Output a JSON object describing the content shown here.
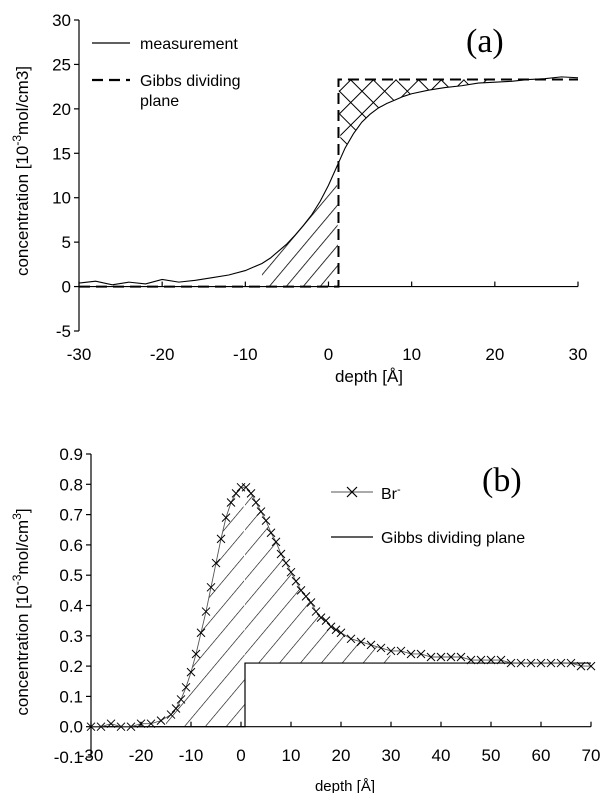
{
  "chart_data": [
    {
      "type": "line",
      "panel_label": "(a)",
      "xlabel": "depth [Å]",
      "ylabel_parts": {
        "pre": "concentration [10",
        "sup": "-3",
        "post": "mol/cm3]"
      },
      "xlim": [
        -30,
        30
      ],
      "ylim": [
        -5,
        30
      ],
      "x_ticks": [
        "-30",
        "-20",
        "-10",
        "0",
        "10",
        "20",
        "30"
      ],
      "y_ticks": [
        "-5",
        "0",
        "5",
        "10",
        "15",
        "20",
        "25",
        "30"
      ],
      "legend": {
        "measurement": "measurement",
        "gibbs_line1": "Gibbs dividing",
        "gibbs_line2": "plane"
      },
      "series": [
        {
          "name": "measurement",
          "style": "solid",
          "x": [
            -30,
            -28,
            -26,
            -24,
            -22,
            -20,
            -18,
            -16,
            -14,
            -12,
            -10,
            -9,
            -8,
            -7,
            -6,
            -5,
            -4,
            -3,
            -2,
            -1,
            0,
            1,
            2,
            3,
            4,
            5,
            6,
            7,
            8,
            9,
            10,
            12,
            14,
            16,
            18,
            20,
            22,
            24,
            26,
            28,
            30
          ],
          "y": [
            0.4,
            0.6,
            0.2,
            0.5,
            0.3,
            0.8,
            0.5,
            0.7,
            1.0,
            1.3,
            1.8,
            2.2,
            2.6,
            3.2,
            4.0,
            4.8,
            5.8,
            6.9,
            8.1,
            9.6,
            11.4,
            13.5,
            15.6,
            17.2,
            18.5,
            19.4,
            20.1,
            20.6,
            21.0,
            21.4,
            21.7,
            22.1,
            22.4,
            22.6,
            22.9,
            23.0,
            23.1,
            23.3,
            23.4,
            23.6,
            23.5
          ]
        },
        {
          "name": "Gibbs dividing plane",
          "style": "dashed",
          "x": [
            -30,
            1.2,
            1.2,
            30
          ],
          "y": [
            0,
            0,
            23.3,
            23.3
          ]
        }
      ]
    },
    {
      "type": "line",
      "panel_label": "(b)",
      "xlabel": "depth [Å]",
      "ylabel_parts": {
        "pre": "concentration [10",
        "sup": "-3",
        "post": "mol/cm",
        "sup2": "3",
        "post2": "]"
      },
      "xlim": [
        -30,
        70
      ],
      "ylim": [
        -0.1,
        0.9
      ],
      "x_ticks": [
        "-30",
        "-20",
        "-10",
        "0",
        "10",
        "20",
        "30",
        "40",
        "50",
        "60",
        "70"
      ],
      "y_ticks": [
        "-0.1",
        "0.0",
        "0.1",
        "0.2",
        "0.3",
        "0.4",
        "0.5",
        "0.6",
        "0.7",
        "0.8",
        "0.9"
      ],
      "legend": {
        "br_base": "Br",
        "br_sup": "-",
        "gibbs": "Gibbs dividing plane"
      },
      "series": [
        {
          "name": "Br-",
          "style": "markers-line",
          "x": [
            -30,
            -28,
            -26,
            -24,
            -22,
            -20,
            -18,
            -16,
            -14,
            -13,
            -12,
            -11,
            -10,
            -9,
            -8,
            -7,
            -6,
            -5,
            -4,
            -3,
            -2,
            -1,
            0,
            1,
            2,
            3,
            4,
            5,
            6,
            7,
            8,
            9,
            10,
            11,
            12,
            13,
            14,
            15,
            16,
            17,
            18,
            19,
            20,
            22,
            24,
            26,
            28,
            30,
            32,
            34,
            36,
            38,
            40,
            42,
            44,
            46,
            48,
            50,
            52,
            54,
            56,
            58,
            60,
            62,
            64,
            66,
            68,
            70
          ],
          "y": [
            0.0,
            0.0,
            0.01,
            0.0,
            0.0,
            0.01,
            0.01,
            0.02,
            0.04,
            0.06,
            0.09,
            0.13,
            0.18,
            0.24,
            0.31,
            0.38,
            0.46,
            0.54,
            0.62,
            0.69,
            0.74,
            0.77,
            0.79,
            0.79,
            0.77,
            0.74,
            0.71,
            0.68,
            0.64,
            0.61,
            0.57,
            0.54,
            0.51,
            0.48,
            0.45,
            0.43,
            0.41,
            0.38,
            0.36,
            0.35,
            0.33,
            0.32,
            0.31,
            0.29,
            0.28,
            0.27,
            0.26,
            0.25,
            0.25,
            0.24,
            0.24,
            0.23,
            0.23,
            0.23,
            0.23,
            0.22,
            0.22,
            0.22,
            0.22,
            0.21,
            0.21,
            0.21,
            0.21,
            0.21,
            0.21,
            0.21,
            0.2,
            0.2
          ]
        },
        {
          "name": "Gibbs dividing plane",
          "style": "solid",
          "x": [
            -30,
            0.8,
            0.8,
            70
          ],
          "y": [
            0,
            0,
            0.21,
            0.21
          ]
        }
      ]
    }
  ]
}
